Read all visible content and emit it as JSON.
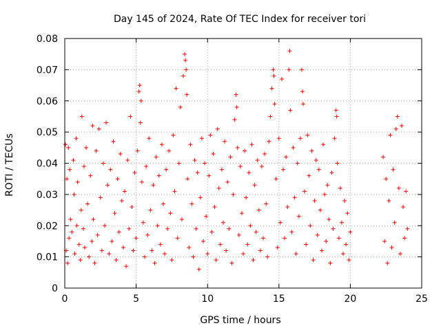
{
  "chart_data": {
    "type": "scatter",
    "title": "Day 145 of 2024, Rate Of TEC Index for receiver tori",
    "xlabel": "GPS time / hours",
    "ylabel": "ROTI / TECUs",
    "xlim": [
      0,
      25
    ],
    "ylim": [
      0,
      0.08
    ],
    "xticks": [
      0,
      5,
      10,
      15,
      20,
      25
    ],
    "xtick_labels": [
      "0",
      "5",
      "10",
      "15",
      "20",
      "25"
    ],
    "yticks": [
      0,
      0.01,
      0.02,
      0.03,
      0.04,
      0.05,
      0.06,
      0.07,
      0.08
    ],
    "ytick_labels": [
      "0",
      "0.01",
      "0.02",
      "0.03",
      "0.04",
      "0.05",
      "0.06",
      "0.07",
      "0.08"
    ],
    "grid": true,
    "marker": "plus",
    "color": "#ff0000",
    "points": [
      [
        0.05,
        0.046
      ],
      [
        0.1,
        0.012
      ],
      [
        0.15,
        0.035
      ],
      [
        0.2,
        0.008
      ],
      [
        0.25,
        0.045
      ],
      [
        0.3,
        0.016
      ],
      [
        0.35,
        0.038
      ],
      [
        0.4,
        0.022
      ],
      [
        0.5,
        0.018
      ],
      [
        0.6,
        0.041
      ],
      [
        0.65,
        0.03
      ],
      [
        0.7,
        0.011
      ],
      [
        0.8,
        0.048
      ],
      [
        0.85,
        0.02
      ],
      [
        0.9,
        0.034
      ],
      [
        1.0,
        0.014
      ],
      [
        1.1,
        0.009
      ],
      [
        1.15,
        0.025
      ],
      [
        1.2,
        0.055
      ],
      [
        1.3,
        0.019
      ],
      [
        1.35,
        0.039
      ],
      [
        1.4,
        0.013
      ],
      [
        1.5,
        0.045
      ],
      [
        1.6,
        0.027
      ],
      [
        1.7,
        0.01
      ],
      [
        1.8,
        0.036
      ],
      [
        1.9,
        0.015
      ],
      [
        1.95,
        0.052
      ],
      [
        2.0,
        0.022
      ],
      [
        2.1,
        0.008
      ],
      [
        2.2,
        0.044
      ],
      [
        2.3,
        0.017
      ],
      [
        2.4,
        0.051
      ],
      [
        2.5,
        0.029
      ],
      [
        2.6,
        0.012
      ],
      [
        2.7,
        0.04
      ],
      [
        2.8,
        0.02
      ],
      [
        2.9,
        0.053
      ],
      [
        3.0,
        0.033
      ],
      [
        3.1,
        0.011
      ],
      [
        3.2,
        0.038
      ],
      [
        3.3,
        0.015
      ],
      [
        3.4,
        0.047
      ],
      [
        3.5,
        0.024
      ],
      [
        3.6,
        0.009
      ],
      [
        3.7,
        0.035
      ],
      [
        3.8,
        0.018
      ],
      [
        3.9,
        0.043
      ],
      [
        4.0,
        0.028
      ],
      [
        4.1,
        0.013
      ],
      [
        4.2,
        0.031
      ],
      [
        4.3,
        0.007
      ],
      [
        4.4,
        0.041
      ],
      [
        4.5,
        0.019
      ],
      [
        4.6,
        0.055
      ],
      [
        4.7,
        0.026
      ],
      [
        4.8,
        0.012
      ],
      [
        4.9,
        0.037
      ],
      [
        5.0,
        0.016
      ],
      [
        5.1,
        0.044
      ],
      [
        5.2,
        0.063
      ],
      [
        5.25,
        0.065
      ],
      [
        5.3,
        0.053
      ],
      [
        5.35,
        0.06
      ],
      [
        5.4,
        0.034
      ],
      [
        5.5,
        0.021
      ],
      [
        5.6,
        0.01
      ],
      [
        5.7,
        0.039
      ],
      [
        5.8,
        0.017
      ],
      [
        5.9,
        0.048
      ],
      [
        6.0,
        0.025
      ],
      [
        6.1,
        0.012
      ],
      [
        6.2,
        0.033
      ],
      [
        6.3,
        0.008
      ],
      [
        6.4,
        0.042
      ],
      [
        6.5,
        0.02
      ],
      [
        6.6,
        0.036
      ],
      [
        6.7,
        0.014
      ],
      [
        6.8,
        0.046
      ],
      [
        6.9,
        0.027
      ],
      [
        7.0,
        0.011
      ],
      [
        7.1,
        0.038
      ],
      [
        7.2,
        0.019
      ],
      [
        7.3,
        0.044
      ],
      [
        7.4,
        0.024
      ],
      [
        7.5,
        0.009
      ],
      [
        7.6,
        0.049
      ],
      [
        7.7,
        0.031
      ],
      [
        7.8,
        0.064
      ],
      [
        7.9,
        0.016
      ],
      [
        8.0,
        0.04
      ],
      [
        8.1,
        0.058
      ],
      [
        8.2,
        0.022
      ],
      [
        8.3,
        0.068
      ],
      [
        8.4,
        0.075
      ],
      [
        8.45,
        0.073
      ],
      [
        8.5,
        0.07
      ],
      [
        8.55,
        0.062
      ],
      [
        8.6,
        0.035
      ],
      [
        8.7,
        0.013
      ],
      [
        8.8,
        0.046
      ],
      [
        8.9,
        0.027
      ],
      [
        9.0,
        0.01
      ],
      [
        9.1,
        0.041
      ],
      [
        9.2,
        0.019
      ],
      [
        9.3,
        0.037
      ],
      [
        9.4,
        0.006
      ],
      [
        9.5,
        0.029
      ],
      [
        9.6,
        0.048
      ],
      [
        9.7,
        0.015
      ],
      [
        9.8,
        0.04
      ],
      [
        9.9,
        0.023
      ],
      [
        10.0,
        0.011
      ],
      [
        10.1,
        0.036
      ],
      [
        10.2,
        0.049
      ],
      [
        10.3,
        0.018
      ],
      [
        10.4,
        0.043
      ],
      [
        10.5,
        0.026
      ],
      [
        10.6,
        0.009
      ],
      [
        10.7,
        0.051
      ],
      [
        10.8,
        0.032
      ],
      [
        10.9,
        0.014
      ],
      [
        11.0,
        0.038
      ],
      [
        11.1,
        0.021
      ],
      [
        11.2,
        0.047
      ],
      [
        11.3,
        0.012
      ],
      [
        11.4,
        0.034
      ],
      [
        11.5,
        0.019
      ],
      [
        11.6,
        0.042
      ],
      [
        11.7,
        0.008
      ],
      [
        11.8,
        0.03
      ],
      [
        11.9,
        0.054
      ],
      [
        12.0,
        0.062
      ],
      [
        12.05,
        0.058
      ],
      [
        12.1,
        0.045
      ],
      [
        12.2,
        0.017
      ],
      [
        12.3,
        0.039
      ],
      [
        12.4,
        0.024
      ],
      [
        12.5,
        0.011
      ],
      [
        12.6,
        0.044
      ],
      [
        12.7,
        0.029
      ],
      [
        12.8,
        0.014
      ],
      [
        12.9,
        0.037
      ],
      [
        13.0,
        0.02
      ],
      [
        13.1,
        0.046
      ],
      [
        13.2,
        0.009
      ],
      [
        13.3,
        0.033
      ],
      [
        13.4,
        0.018
      ],
      [
        13.5,
        0.041
      ],
      [
        13.6,
        0.025
      ],
      [
        13.7,
        0.012
      ],
      [
        13.8,
        0.039
      ],
      [
        13.9,
        0.016
      ],
      [
        14.0,
        0.043
      ],
      [
        14.1,
        0.027
      ],
      [
        14.2,
        0.01
      ],
      [
        14.3,
        0.047
      ],
      [
        14.4,
        0.055
      ],
      [
        14.5,
        0.064
      ],
      [
        14.6,
        0.07
      ],
      [
        14.65,
        0.068
      ],
      [
        14.7,
        0.059
      ],
      [
        14.8,
        0.035
      ],
      [
        14.9,
        0.013
      ],
      [
        15.0,
        0.048
      ],
      [
        15.1,
        0.021
      ],
      [
        15.2,
        0.067
      ],
      [
        15.3,
        0.038
      ],
      [
        15.4,
        0.016
      ],
      [
        15.5,
        0.042
      ],
      [
        15.6,
        0.026
      ],
      [
        15.7,
        0.07
      ],
      [
        15.75,
        0.076
      ],
      [
        15.8,
        0.057
      ],
      [
        15.9,
        0.018
      ],
      [
        16.0,
        0.045
      ],
      [
        16.1,
        0.029
      ],
      [
        16.2,
        0.011
      ],
      [
        16.3,
        0.04
      ],
      [
        16.4,
        0.023
      ],
      [
        16.5,
        0.048
      ],
      [
        16.6,
        0.07
      ],
      [
        16.65,
        0.063
      ],
      [
        16.7,
        0.059
      ],
      [
        16.8,
        0.031
      ],
      [
        16.9,
        0.014
      ],
      [
        17.0,
        0.049
      ],
      [
        17.1,
        0.036
      ],
      [
        17.2,
        0.02
      ],
      [
        17.3,
        0.044
      ],
      [
        17.4,
        0.009
      ],
      [
        17.5,
        0.028
      ],
      [
        17.6,
        0.041
      ],
      [
        17.7,
        0.017
      ],
      [
        17.8,
        0.038
      ],
      [
        17.9,
        0.025
      ],
      [
        18.0,
        0.012
      ],
      [
        18.1,
        0.046
      ],
      [
        18.2,
        0.03
      ],
      [
        18.3,
        0.015
      ],
      [
        18.4,
        0.033
      ],
      [
        18.5,
        0.022
      ],
      [
        18.6,
        0.008
      ],
      [
        18.7,
        0.037
      ],
      [
        18.8,
        0.019
      ],
      [
        18.9,
        0.048
      ],
      [
        19.0,
        0.057
      ],
      [
        19.05,
        0.055
      ],
      [
        19.1,
        0.04
      ],
      [
        19.2,
        0.016
      ],
      [
        19.3,
        0.032
      ],
      [
        19.4,
        0.021
      ],
      [
        19.5,
        0.011
      ],
      [
        19.6,
        0.028
      ],
      [
        19.7,
        0.014
      ],
      [
        19.8,
        0.024
      ],
      [
        19.9,
        0.009
      ],
      [
        20.0,
        0.018
      ],
      [
        22.3,
        0.042
      ],
      [
        22.4,
        0.015
      ],
      [
        22.5,
        0.035
      ],
      [
        22.6,
        0.008
      ],
      [
        22.7,
        0.028
      ],
      [
        22.8,
        0.049
      ],
      [
        22.9,
        0.013
      ],
      [
        23.0,
        0.038
      ],
      [
        23.1,
        0.021
      ],
      [
        23.2,
        0.051
      ],
      [
        23.3,
        0.055
      ],
      [
        23.4,
        0.032
      ],
      [
        23.5,
        0.011
      ],
      [
        23.6,
        0.052
      ],
      [
        23.7,
        0.026
      ],
      [
        23.8,
        0.016
      ],
      [
        23.9,
        0.031
      ],
      [
        24.0,
        0.019
      ]
    ]
  }
}
